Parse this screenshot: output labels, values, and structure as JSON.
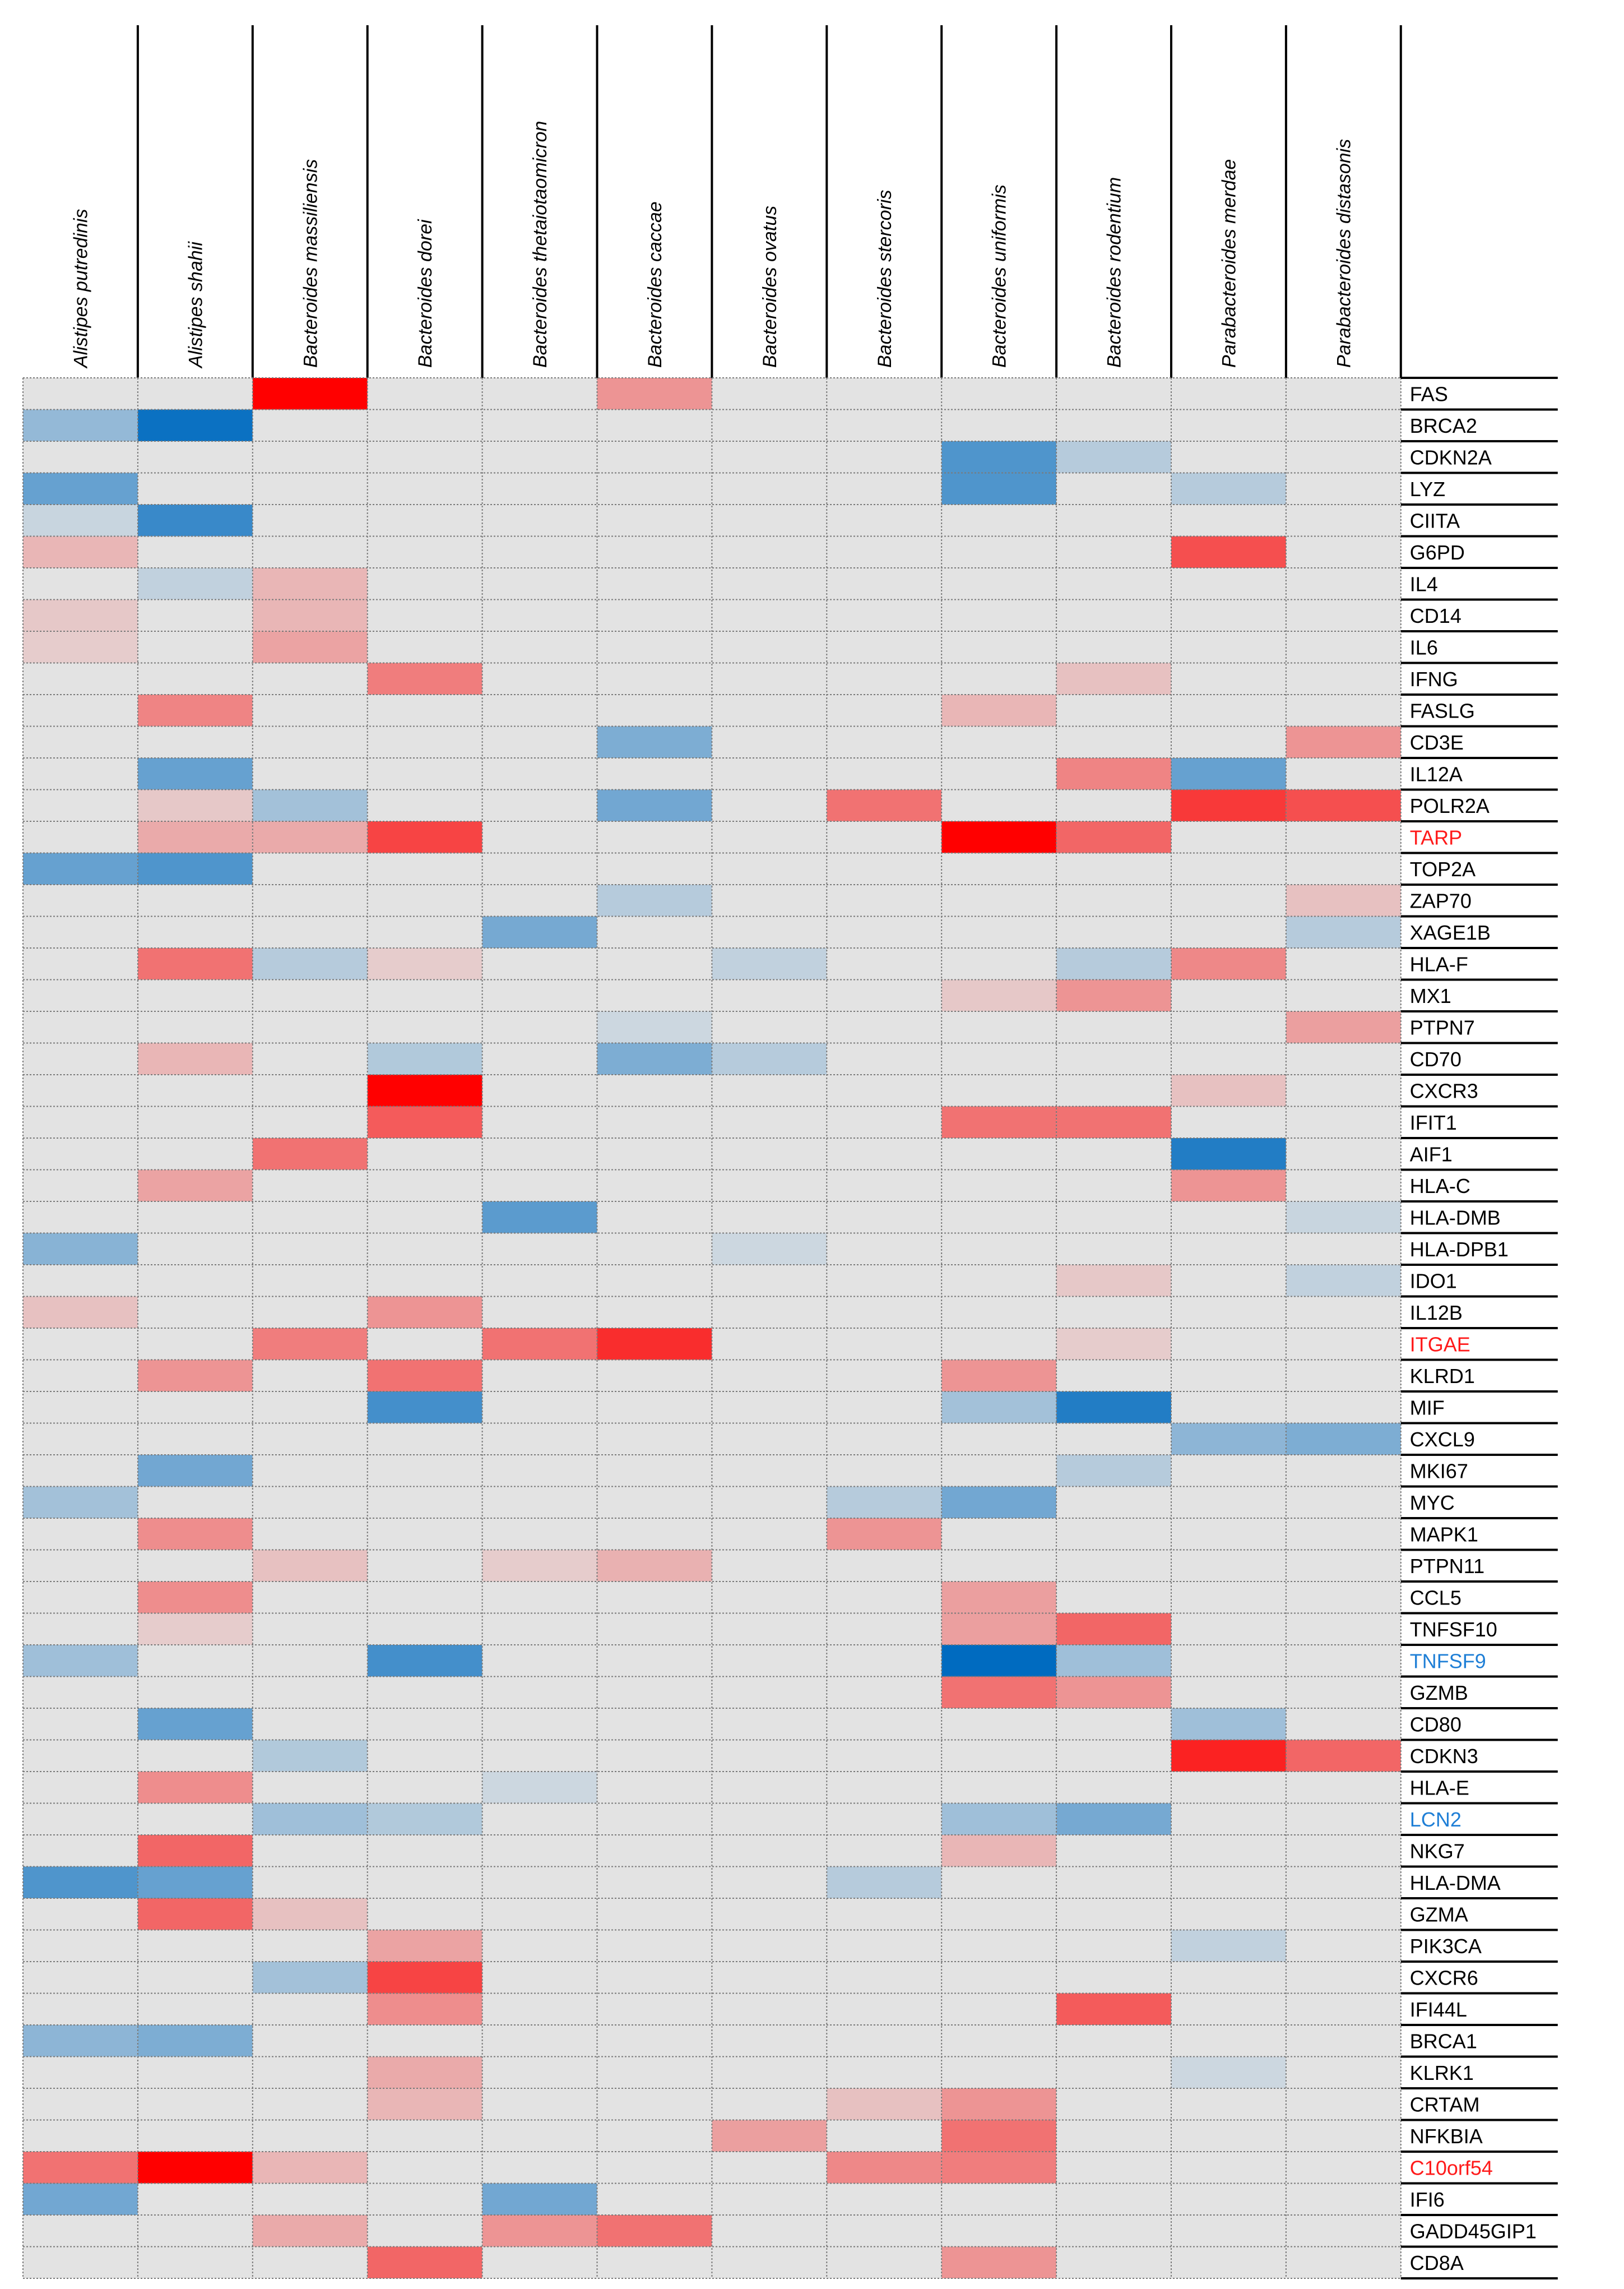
{
  "chart_data": {
    "type": "heatmap",
    "title": "",
    "columns": [
      "Alistipes putredinis",
      "Alistipes shahii",
      "Bacteroides massiliensis",
      "Bacteroides dorei",
      "Bacteroides thetaiotaomicron",
      "Bacteroides caccae",
      "Bacteroides ovatus",
      "Bacteroides stercoris",
      "Bacteroides uniformis",
      "Bacteroides rodentium",
      "Parabacteroides merdae",
      "Parabacteroides distasonis"
    ],
    "rows": [
      "FAS",
      "BRCA2",
      "CDKN2A",
      "LYZ",
      "CIITA",
      "G6PD",
      "IL4",
      "CD14",
      "IL6",
      "IFNG",
      "FASLG",
      "CD3E",
      "IL12A",
      "POLR2A",
      "TARP",
      "TOP2A",
      "ZAP70",
      "XAGE1B",
      "HLA-F",
      "MX1",
      "PTPN7",
      "CD70",
      "CXCR3",
      "IFIT1",
      "AIF1",
      "HLA-C",
      "HLA-DMB",
      "HLA-DPB1",
      "IDO1",
      "IL12B",
      "ITGAE",
      "KLRD1",
      "MIF",
      "CXCL9",
      "MKI67",
      "MYC",
      "MAPK1",
      "PTPN11",
      "CCL5",
      "TNFSF10",
      "TNFSF9",
      "GZMB",
      "CD80",
      "CDKN3",
      "HLA-E",
      "LCN2",
      "NKG7",
      "HLA-DMA",
      "GZMA",
      "PIK3CA",
      "CXCR6",
      "IFI44L",
      "BRCA1",
      "KLRK1",
      "CRTAM",
      "NFKBIA",
      "C10orf54",
      "IFI6",
      "GADD45GIP1",
      "CD8A"
    ],
    "row_label_colors": {
      "TARP": "#ff1a1a",
      "ITGAE": "#ff1a1a",
      "C10orf54": "#ff1a1a",
      "TNFSF9": "#1f7fd6",
      "LCN2": "#1f7fd6"
    },
    "value_range": [
      -1,
      1
    ],
    "value_note": "",
    "colors": {
      "neutral": "#e3e3e3",
      "positive_max": "#ff0000",
      "negative_max": "#006bc0",
      "default_label": "#000000"
    },
    "values": [
      [
        0,
        0,
        1,
        0,
        0,
        0.35,
        0,
        0,
        0,
        0,
        0,
        0
      ],
      [
        -0.35,
        -0.95,
        0,
        0,
        0,
        0,
        0,
        0,
        0,
        0,
        0,
        0
      ],
      [
        0,
        0,
        0,
        0,
        0,
        0,
        0,
        0,
        -0.65,
        -0.2,
        0,
        0
      ],
      [
        -0.55,
        0,
        0,
        0,
        0,
        0,
        0,
        0,
        -0.65,
        0,
        -0.2,
        0
      ],
      [
        -0.12,
        -0.75,
        0,
        0,
        0,
        0,
        0,
        0,
        0,
        0,
        0,
        0
      ],
      [
        0.2,
        0,
        0,
        0,
        0,
        0,
        0,
        0,
        0,
        0,
        0.65,
        0
      ],
      [
        0,
        -0.15,
        0.2,
        0,
        0,
        0,
        0,
        0,
        0,
        0,
        0,
        0
      ],
      [
        0.12,
        0,
        0.2,
        0,
        0,
        0,
        0,
        0,
        0,
        0,
        0,
        0
      ],
      [
        0.1,
        0,
        0.28,
        0,
        0,
        0,
        0,
        0,
        0,
        0,
        0,
        0
      ],
      [
        0,
        0,
        0,
        0.45,
        0,
        0,
        0,
        0,
        0,
        0.15,
        0,
        0
      ],
      [
        0,
        0.42,
        0,
        0,
        0,
        0,
        0,
        0,
        0.2,
        0,
        0,
        0
      ],
      [
        0,
        0,
        0,
        0,
        0,
        -0.45,
        0,
        0,
        0,
        0,
        0,
        0.35
      ],
      [
        0,
        -0.55,
        0,
        0,
        0,
        0,
        0,
        0,
        0,
        0.42,
        -0.55,
        0
      ],
      [
        0,
        0.12,
        -0.28,
        0,
        0,
        -0.5,
        0,
        0.5,
        0,
        0,
        0.75,
        0.65
      ],
      [
        0,
        0.25,
        0.25,
        0.7,
        0,
        0,
        0,
        0,
        1,
        0.55,
        0,
        0
      ],
      [
        -0.55,
        -0.65,
        0,
        0,
        0,
        0,
        0,
        0,
        0,
        0,
        0,
        0
      ],
      [
        0,
        0,
        0,
        0,
        0,
        -0.2,
        0,
        0,
        0,
        0,
        0,
        0.15
      ],
      [
        0,
        0,
        0,
        0,
        -0.48,
        0,
        0,
        0,
        0,
        0,
        0,
        -0.2
      ],
      [
        0,
        0.5,
        -0.2,
        0.1,
        0,
        0,
        -0.15,
        0,
        0,
        -0.2,
        0.4,
        0
      ],
      [
        0,
        0,
        0,
        0,
        0,
        0,
        0,
        0,
        0.12,
        0.35,
        0,
        0
      ],
      [
        0,
        0,
        0,
        0,
        0,
        -0.1,
        0,
        0,
        0,
        0,
        0,
        0.3
      ],
      [
        0,
        0.2,
        0,
        -0.22,
        0,
        -0.45,
        -0.2,
        0,
        0,
        0,
        0,
        0
      ],
      [
        0,
        0,
        0,
        1,
        0,
        0,
        0,
        0,
        0,
        0,
        0.15,
        0
      ],
      [
        0,
        0,
        0,
        0.6,
        0,
        0,
        0,
        0,
        0.5,
        0.5,
        0,
        0
      ],
      [
        0,
        0,
        0.5,
        0,
        0,
        0,
        0,
        0,
        0,
        0,
        -0.85,
        0
      ],
      [
        0,
        0.28,
        0,
        0,
        0,
        0,
        0,
        0,
        0,
        0,
        0.35,
        0
      ],
      [
        0,
        0,
        0,
        0,
        -0.6,
        0,
        0,
        0,
        0,
        0,
        0,
        -0.12
      ],
      [
        -0.4,
        0,
        0,
        0,
        0,
        0,
        -0.1,
        0,
        0,
        0,
        0,
        0
      ],
      [
        0,
        0,
        0,
        0,
        0,
        0,
        0,
        0,
        0,
        0.12,
        0,
        -0.15
      ],
      [
        0.15,
        0,
        0,
        0.35,
        0,
        0,
        0,
        0,
        0,
        0,
        0,
        0
      ],
      [
        0,
        0,
        0.45,
        0,
        0.5,
        0.8,
        0,
        0,
        0,
        0.1,
        0,
        0
      ],
      [
        0,
        0.35,
        0,
        0.5,
        0,
        0,
        0,
        0,
        0.35,
        0,
        0,
        0
      ],
      [
        0,
        0,
        0,
        -0.7,
        0,
        0,
        0,
        0,
        -0.28,
        -0.85,
        0,
        0
      ],
      [
        0,
        0,
        0,
        0,
        0,
        0,
        0,
        0,
        0,
        0,
        -0.38,
        -0.45
      ],
      [
        0,
        -0.5,
        0,
        0,
        0,
        0,
        0,
        0,
        0,
        -0.2,
        0,
        0
      ],
      [
        -0.28,
        0,
        0,
        0,
        0,
        0,
        0,
        -0.2,
        -0.5,
        0,
        0,
        0
      ],
      [
        0,
        0.38,
        0,
        0,
        0,
        0,
        0,
        0.35,
        0,
        0,
        0,
        0
      ],
      [
        0,
        0,
        0.15,
        0,
        0.1,
        0.22,
        0,
        0,
        0,
        0,
        0,
        0
      ],
      [
        0,
        0.38,
        0,
        0,
        0,
        0,
        0,
        0,
        0.3,
        0,
        0,
        0
      ],
      [
        0,
        0.1,
        0,
        0,
        0,
        0,
        0,
        0,
        0.3,
        0.55,
        0,
        0
      ],
      [
        -0.3,
        0,
        0,
        -0.7,
        0,
        0,
        0,
        0,
        -1,
        -0.3,
        0,
        0
      ],
      [
        0,
        0,
        0,
        0,
        0,
        0,
        0,
        0,
        0.5,
        0.35,
        0,
        0
      ],
      [
        0,
        -0.55,
        0,
        0,
        0,
        0,
        0,
        0,
        0,
        0,
        -0.3,
        0
      ],
      [
        0,
        0,
        -0.22,
        0,
        0,
        0,
        0,
        0,
        0,
        0,
        0.85,
        0.55
      ],
      [
        0,
        0.38,
        0,
        0,
        -0.1,
        0,
        0,
        0,
        0,
        0,
        0,
        0
      ],
      [
        0,
        0,
        -0.3,
        -0.22,
        0,
        0,
        0,
        0,
        -0.3,
        -0.48,
        0,
        0
      ],
      [
        0,
        0.55,
        0,
        0,
        0,
        0,
        0,
        0,
        0.2,
        0,
        0,
        0
      ],
      [
        -0.65,
        -0.55,
        0,
        0,
        0,
        0,
        0,
        -0.2,
        0,
        0,
        0,
        0
      ],
      [
        0,
        0.55,
        0.15,
        0,
        0,
        0,
        0,
        0,
        0,
        0,
        0,
        0
      ],
      [
        0,
        0,
        0,
        0.28,
        0,
        0,
        0,
        0,
        0,
        0,
        -0.15,
        0
      ],
      [
        0,
        0,
        -0.28,
        0.7,
        0,
        0,
        0,
        0,
        0,
        0,
        0,
        0
      ],
      [
        0,
        0,
        0,
        0.38,
        0,
        0,
        0,
        0,
        0,
        0.6,
        0,
        0
      ],
      [
        -0.38,
        -0.45,
        0,
        0,
        0,
        0,
        0,
        0,
        0,
        0,
        0,
        0
      ],
      [
        0,
        0,
        0,
        0.25,
        0,
        0,
        0,
        0,
        0,
        0,
        -0.1,
        0
      ],
      [
        0,
        0,
        0,
        0.2,
        0,
        0,
        0,
        0.15,
        0.35,
        0,
        0,
        0
      ],
      [
        0,
        0,
        0,
        0,
        0,
        0,
        0.3,
        0,
        0.5,
        0,
        0,
        0
      ],
      [
        0.5,
        1,
        0.2,
        0,
        0,
        0,
        0,
        0.4,
        0.45,
        0,
        0,
        0
      ],
      [
        -0.5,
        0,
        0,
        0,
        -0.5,
        0,
        0,
        0,
        0,
        0,
        0,
        0
      ],
      [
        0,
        0,
        0.25,
        0,
        0.35,
        0.5,
        0,
        0,
        0,
        0,
        0,
        0
      ],
      [
        0,
        0,
        0,
        0.55,
        0,
        0,
        0,
        0,
        0.35,
        0,
        0,
        0
      ]
    ]
  }
}
